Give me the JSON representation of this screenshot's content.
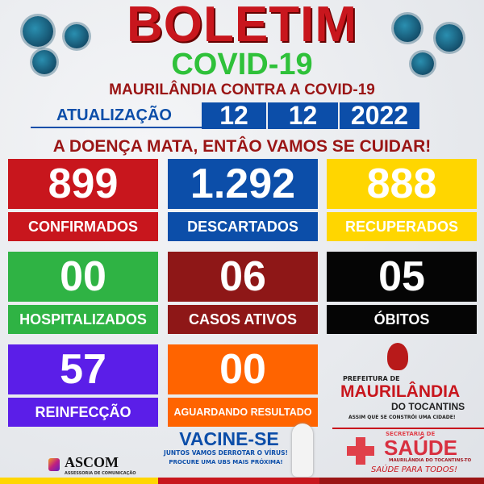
{
  "header": {
    "title": "BOLETIM",
    "subtitle": "COVID-19",
    "tagline": "MAURILÂNDIA CONTRA A COVID-19"
  },
  "update": {
    "label": "ATUALIZAÇÃO",
    "day": "12",
    "month": "12",
    "year": "2022"
  },
  "slogan": "A DOENÇA MATA, ENTÂO VAMOS SE CUIDAR!",
  "stats": [
    {
      "value": "899",
      "label": "CONFIRMADOS",
      "color": "#c8161d",
      "text_color": "#ffffff"
    },
    {
      "value": "1.292",
      "label": "DESCARTADOS",
      "color": "#0c4ea9",
      "text_color": "#ffffff"
    },
    {
      "value": "888",
      "label": "RECUPERADOS",
      "color": "#ffd600",
      "text_color": "#ffffff"
    },
    {
      "value": "00",
      "label": "HOSPITALIZADOS",
      "color": "#2fb344",
      "text_color": "#ffffff"
    },
    {
      "value": "06",
      "label": "CASOS ATIVOS",
      "color": "#8e1717",
      "text_color": "#ffffff"
    },
    {
      "value": "05",
      "label": "ÓBITOS",
      "color": "#050505",
      "text_color": "#ffffff"
    },
    {
      "value": "57",
      "label": "REINFECÇÃO",
      "color": "#5b1ee8",
      "text_color": "#ffffff"
    },
    {
      "value": "00",
      "label": "AGUARDANDO RESULTADO",
      "color": "#ff6400",
      "text_color": "#ffffff"
    }
  ],
  "vaccine": {
    "title": "VACINE-SE",
    "line1": "JUNTOS VAMOS DERROTAR O VÍRUS!",
    "line2": "PROCURE UMA UBS MAIS PRÓXIMA!"
  },
  "ascom": {
    "name": "ASCOM",
    "sub": "ASSESSORIA DE COMUNICAÇÃO"
  },
  "prefeitura": {
    "pre": "PREFEITURA DE",
    "name": "MAURILÂNDIA",
    "sub": "DO TOCANTINS",
    "motto": "ASSIM QUE SE CONSTRÓI UMA CIDADE!"
  },
  "saude": {
    "pre": "SECRETARIA DE",
    "name": "SAÚDE",
    "sub": "MAURILÂNDIA DO TOCANTINS-TO",
    "motto": "SAÚDE PARA TODOS!"
  }
}
